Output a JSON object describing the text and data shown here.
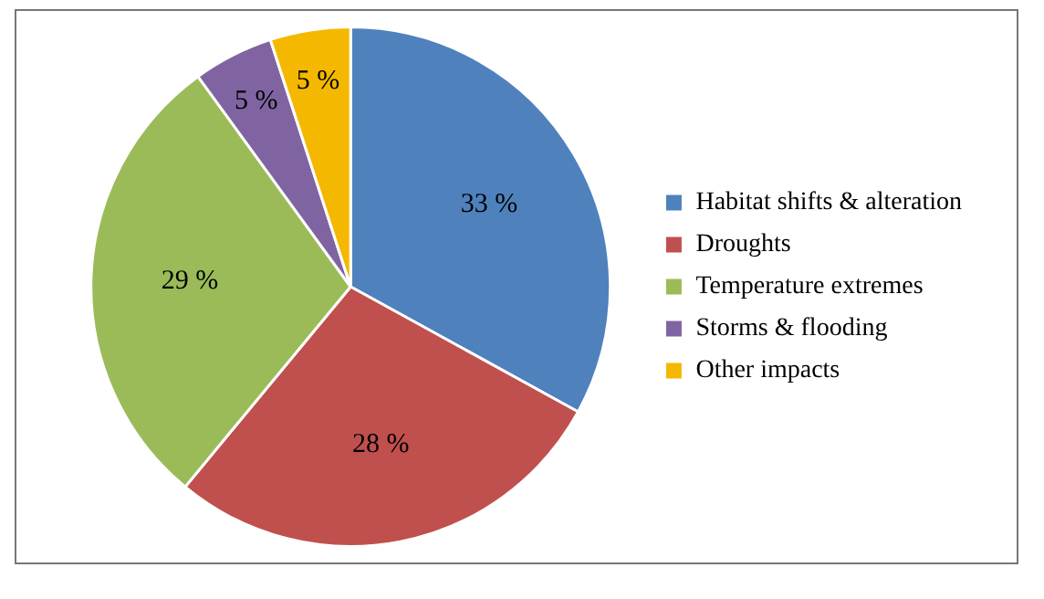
{
  "chart_data": {
    "type": "pie",
    "categories": [
      "Habitat shifts & alteration",
      "Droughts",
      "Temperature extremes",
      "Storms & flooding",
      "Other impacts"
    ],
    "values": [
      33,
      28,
      29,
      5,
      5
    ],
    "colors": [
      "#4f81bd",
      "#c0504d",
      "#9bbb59",
      "#8064a2",
      "#f5b800"
    ],
    "value_labels": [
      "33 %",
      "28 %",
      "29 %",
      "5 %",
      "5 %"
    ],
    "legend": "right"
  }
}
